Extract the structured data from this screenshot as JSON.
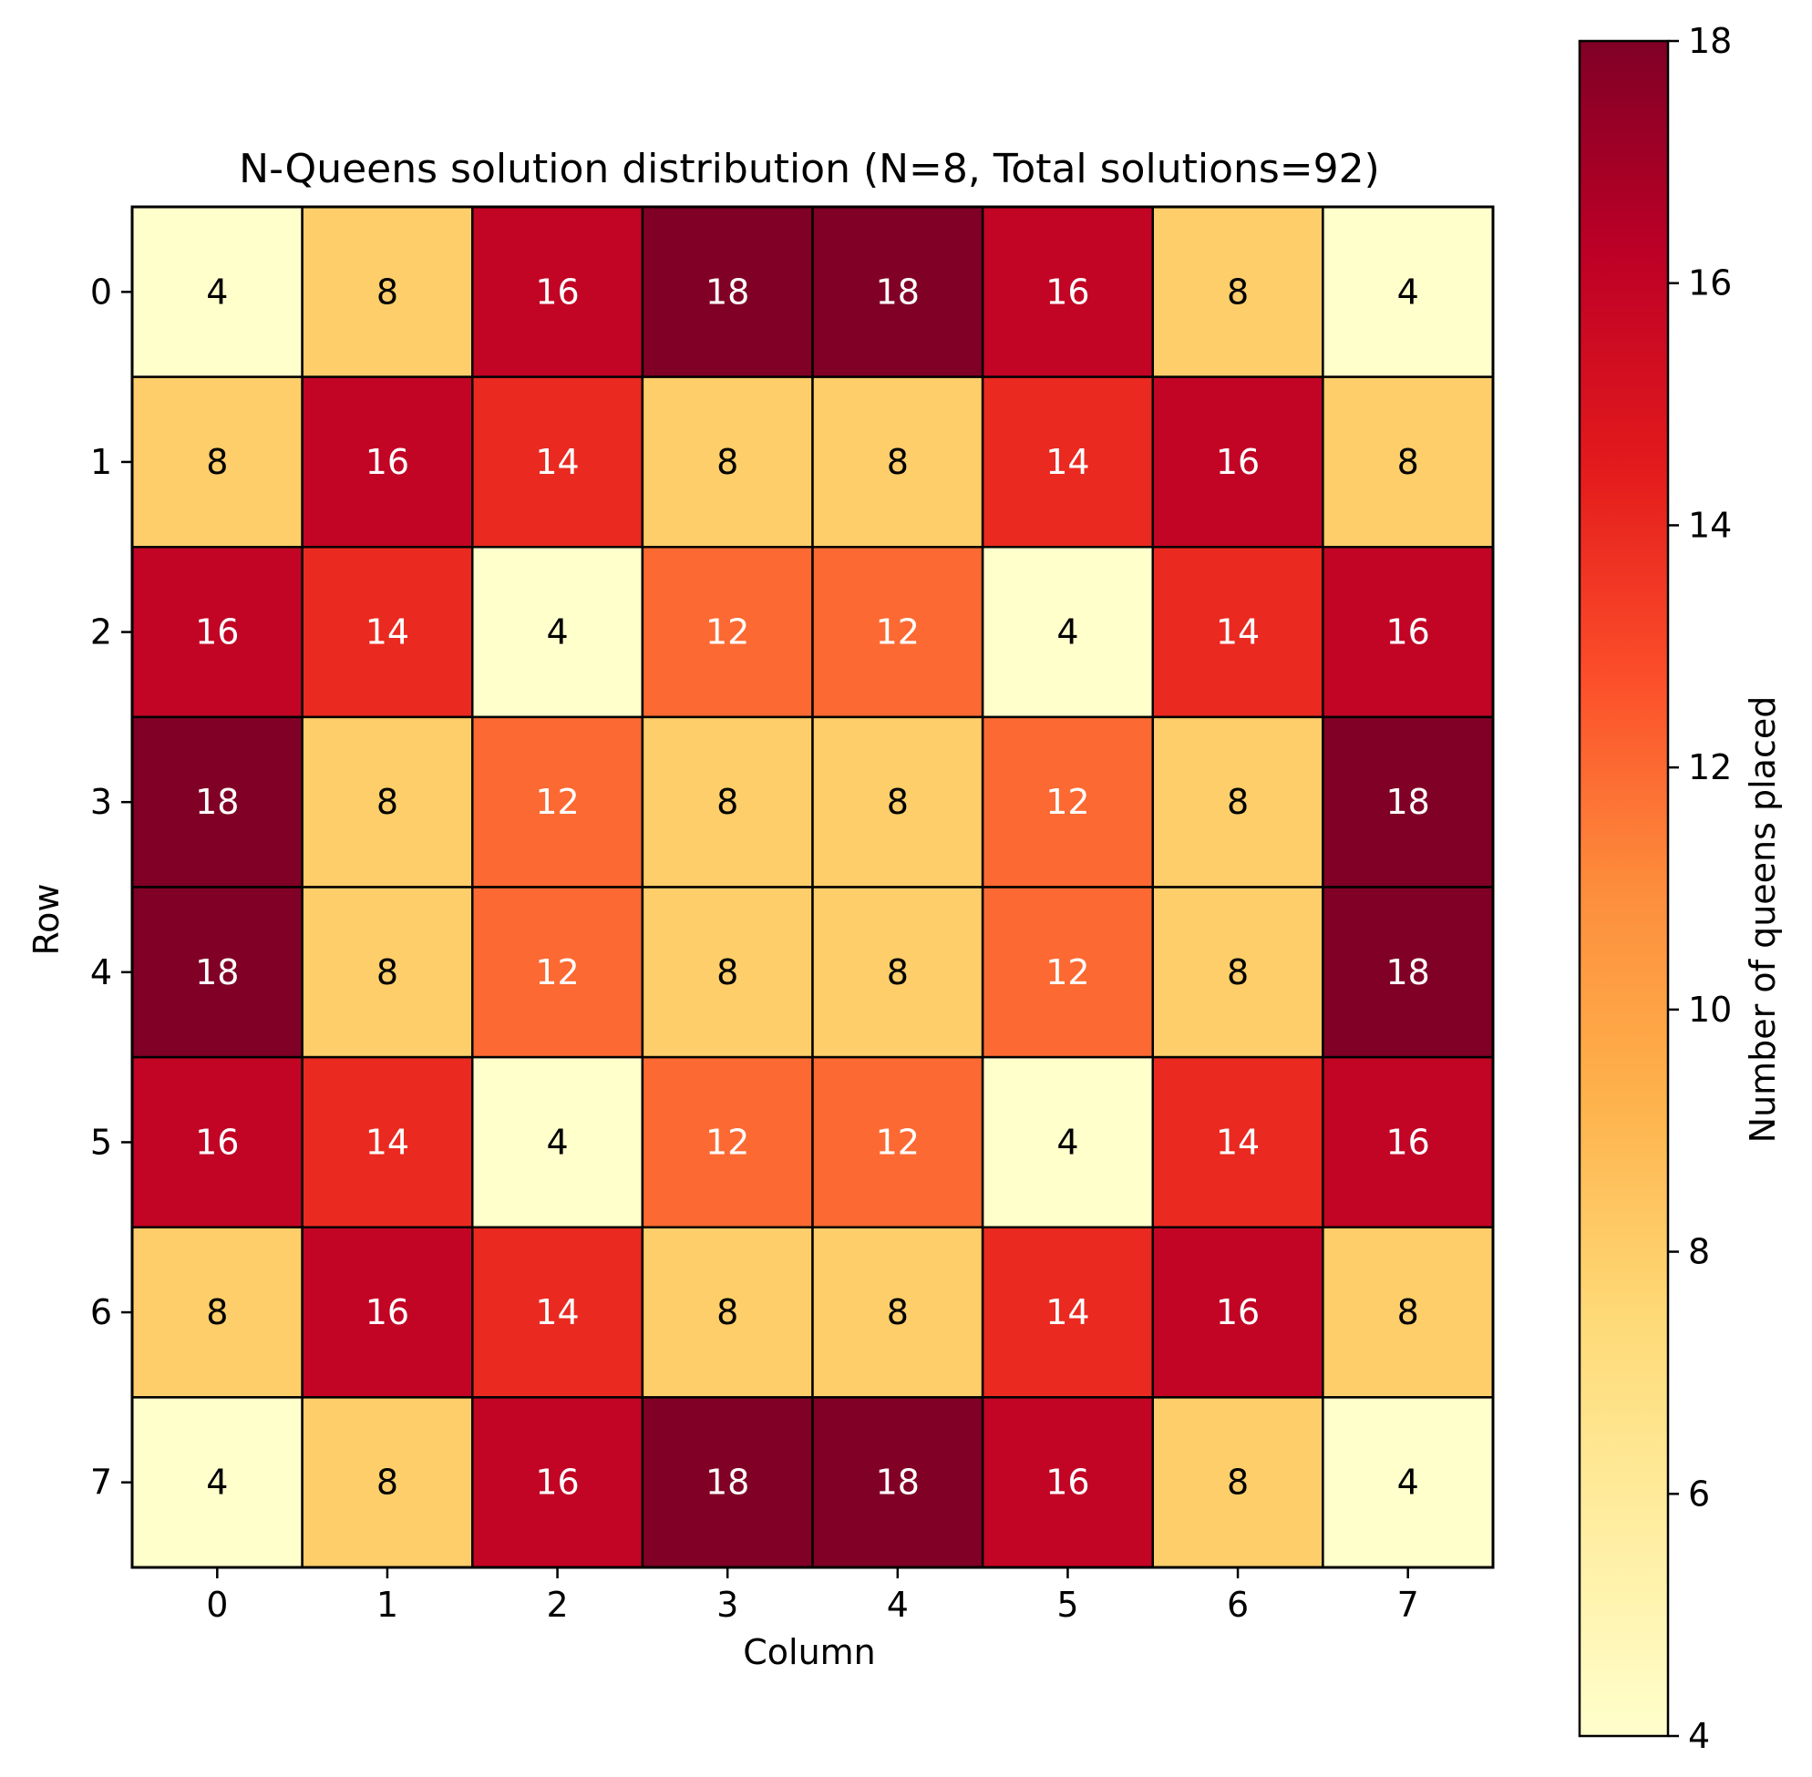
{
  "chart_data": {
    "type": "heatmap",
    "title": "N-Queens solution distribution (N=8, Total solutions=92)",
    "xlabel": "Column",
    "ylabel": "Row",
    "x_ticks": [
      "0",
      "1",
      "2",
      "3",
      "4",
      "5",
      "6",
      "7"
    ],
    "y_ticks": [
      "0",
      "1",
      "2",
      "3",
      "4",
      "5",
      "6",
      "7"
    ],
    "values": [
      [
        4,
        8,
        16,
        18,
        18,
        16,
        8,
        4
      ],
      [
        8,
        16,
        14,
        8,
        8,
        14,
        16,
        8
      ],
      [
        16,
        14,
        4,
        12,
        12,
        4,
        14,
        16
      ],
      [
        18,
        8,
        12,
        8,
        8,
        12,
        8,
        18
      ],
      [
        18,
        8,
        12,
        8,
        8,
        12,
        8,
        18
      ],
      [
        16,
        14,
        4,
        12,
        12,
        4,
        14,
        16
      ],
      [
        8,
        16,
        14,
        8,
        8,
        14,
        16,
        8
      ],
      [
        4,
        8,
        16,
        18,
        18,
        16,
        8,
        4
      ]
    ],
    "colormap": [
      "#ffffcc",
      "#ffeda0",
      "#fed976",
      "#feb24c",
      "#fd8d3c",
      "#fc4e2a",
      "#e31a1c",
      "#bd0026",
      "#800026"
    ],
    "colorbar": {
      "label": "Number of queens placed",
      "range": [
        4,
        18
      ],
      "ticks": [
        "4",
        "6",
        "8",
        "10",
        "12",
        "14",
        "16",
        "18"
      ]
    },
    "grid": false,
    "cell_edge_color": "#000000"
  }
}
